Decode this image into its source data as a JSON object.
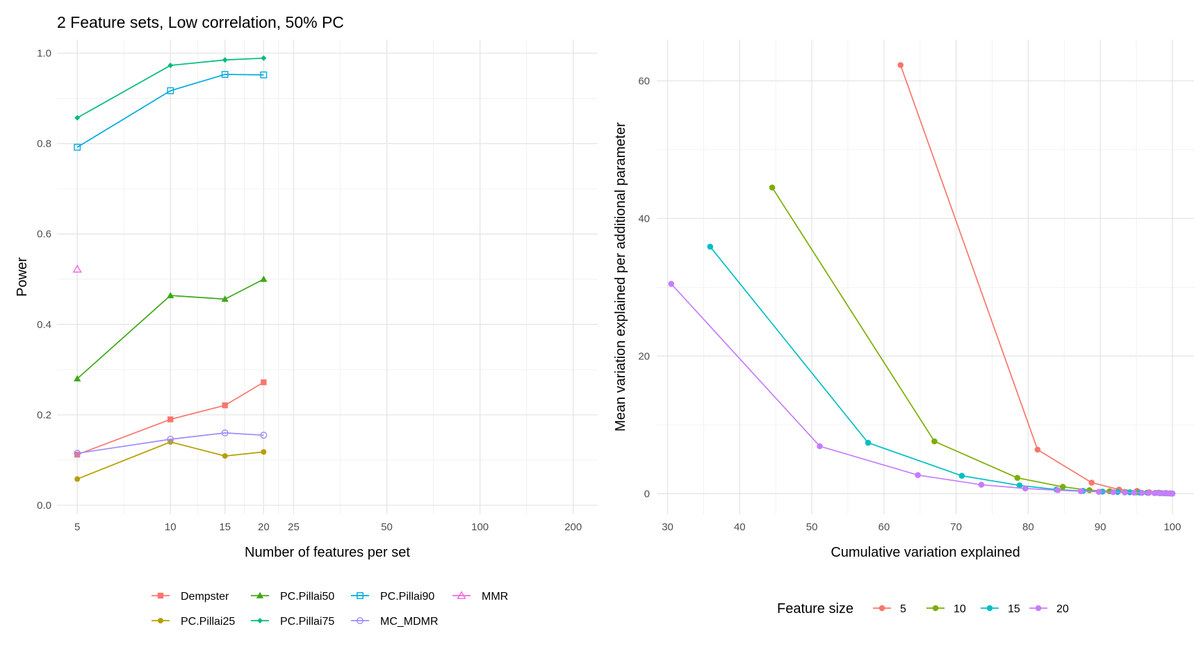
{
  "page_title": "2 Feature sets, Low correlation, 50% PC",
  "colors": {
    "Dempster": "#F8766D",
    "PC.Pillai25": "#B79F00",
    "PC.Pillai50": "#3EA818",
    "PC.Pillai75": "#00BA7E",
    "PC.Pillai90": "#00A9E0",
    "MC_MDMR": "#9C8CFF",
    "MMR": "#F564E3",
    "fs5": "#F8766D",
    "fs10": "#7CAE00",
    "fs15": "#00BFC4",
    "fs20": "#C77CFF",
    "grid_major": "#E5E5E5",
    "grid_minor": "#F2F2F2",
    "axis_text": "#4D4D4D"
  },
  "chart_data": [
    {
      "type": "line",
      "title": "2 Feature sets, Low correlation, 50% PC",
      "xlabel": "Number of features per set",
      "ylabel": "Power",
      "x_scale": "log",
      "xlim": [
        4.3,
        240
      ],
      "ylim": [
        -0.02,
        1.03
      ],
      "xticks": [
        5,
        10,
        15,
        20,
        25,
        50,
        100,
        200
      ],
      "xtick_labels": [
        "5",
        "10",
        "15",
        "20",
        "25",
        "50",
        "100",
        "200"
      ],
      "yticks": [
        0.0,
        0.2,
        0.4,
        0.6,
        0.8,
        1.0
      ],
      "ytick_labels": [
        "0.0",
        "0.2",
        "0.4",
        "0.6",
        "0.8",
        "1.0"
      ],
      "legend_position": "bottom",
      "series": [
        {
          "name": "Dempster",
          "shape": "square",
          "x": [
            5,
            10,
            15,
            20
          ],
          "values": [
            0.112,
            0.19,
            0.221,
            0.272
          ]
        },
        {
          "name": "PC.Pillai25",
          "shape": "dot",
          "x": [
            5,
            10,
            15,
            20
          ],
          "values": [
            0.058,
            0.14,
            0.109,
            0.118
          ]
        },
        {
          "name": "PC.Pillai50",
          "shape": "triangle",
          "x": [
            5,
            10,
            15,
            20
          ],
          "values": [
            0.28,
            0.464,
            0.456,
            0.5
          ]
        },
        {
          "name": "PC.Pillai75",
          "shape": "diamond",
          "x": [
            5,
            10,
            15,
            20
          ],
          "values": [
            0.857,
            0.973,
            0.985,
            0.989
          ]
        },
        {
          "name": "PC.Pillai90",
          "shape": "open-square",
          "x": [
            5,
            10,
            15,
            20
          ],
          "values": [
            0.792,
            0.917,
            0.953,
            0.952
          ]
        },
        {
          "name": "MMR",
          "shape": "open-triangle",
          "x": [
            5
          ],
          "values": [
            0.522
          ]
        },
        {
          "name": "MC_MDMR",
          "shape": "open-circle",
          "x": [
            5,
            10,
            15,
            20
          ],
          "values": [
            0.115,
            0.146,
            0.16,
            0.155
          ]
        }
      ],
      "legend_order": [
        "Dempster",
        "PC.Pillai25",
        "PC.Pillai50",
        "PC.Pillai75",
        "PC.Pillai90",
        "MC_MDMR",
        "MMR"
      ]
    },
    {
      "type": "line",
      "title": "",
      "xlabel": "Cumulative variation explained",
      "ylabel": "Mean variation explained per additional parameter",
      "xlim": [
        28.5,
        103
      ],
      "ylim": [
        -3,
        66
      ],
      "xticks": [
        30,
        40,
        50,
        60,
        70,
        80,
        90,
        100
      ],
      "xtick_labels": [
        "30",
        "40",
        "50",
        "60",
        "70",
        "80",
        "90",
        "100"
      ],
      "yticks": [
        0,
        20,
        40,
        60
      ],
      "ytick_labels": [
        "0",
        "20",
        "40",
        "60"
      ],
      "legend_title": "Feature size",
      "legend_position": "bottom",
      "series": [
        {
          "name": "5",
          "x": [
            62.3,
            81.3,
            88.8,
            92.6,
            95.1,
            96.8,
            98.1,
            99.1,
            99.7,
            100
          ],
          "values": [
            62.3,
            6.4,
            1.6,
            0.6,
            0.4,
            0.2,
            0.15,
            0.1,
            0.05,
            0.02
          ]
        },
        {
          "name": "10",
          "x": [
            44.5,
            67.0,
            78.5,
            84.8,
            88.5,
            91.3,
            93.4,
            95.1,
            96.5,
            97.6,
            98.5,
            99.2,
            99.7,
            100
          ],
          "values": [
            44.5,
            7.6,
            2.3,
            1.0,
            0.5,
            0.35,
            0.25,
            0.2,
            0.15,
            0.1,
            0.08,
            0.06,
            0.04,
            0.02
          ]
        },
        {
          "name": "15",
          "x": [
            35.9,
            57.8,
            70.8,
            78.8,
            83.9,
            87.6,
            90.3,
            92.4,
            94.1,
            95.5,
            96.6,
            97.6,
            98.4,
            99.1,
            99.6,
            100
          ],
          "values": [
            35.9,
            7.4,
            2.6,
            1.2,
            0.6,
            0.4,
            0.3,
            0.25,
            0.2,
            0.15,
            0.12,
            0.1,
            0.08,
            0.06,
            0.04,
            0.02
          ]
        },
        {
          "name": "20",
          "x": [
            30.5,
            51.1,
            64.7,
            73.5,
            79.6,
            84.1,
            87.3,
            89.8,
            91.8,
            93.4,
            94.7,
            95.8,
            96.7,
            97.5,
            98.2,
            98.8,
            99.3,
            99.6,
            99.9,
            100
          ],
          "values": [
            30.5,
            6.9,
            2.7,
            1.3,
            0.75,
            0.5,
            0.35,
            0.28,
            0.22,
            0.18,
            0.15,
            0.12,
            0.1,
            0.08,
            0.06,
            0.05,
            0.04,
            0.03,
            0.02,
            0.01
          ]
        }
      ]
    }
  ]
}
